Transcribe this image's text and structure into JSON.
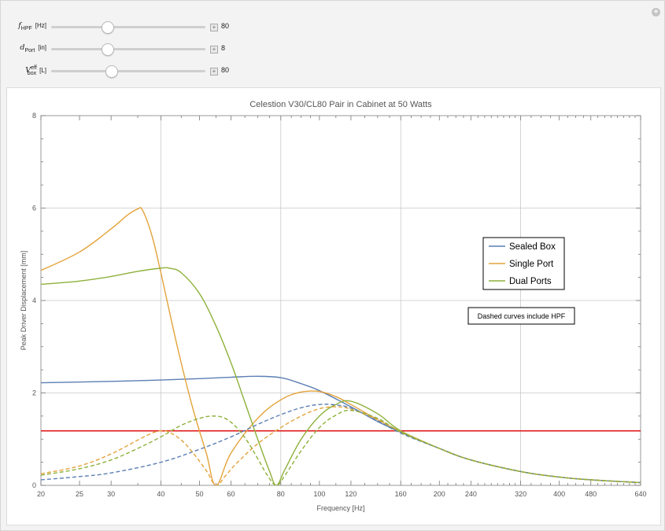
{
  "controls": [
    {
      "sym": "f",
      "sub": "HPF",
      "sup": "",
      "unit": "[Hz]",
      "value": "80",
      "fraction": 0.36
    },
    {
      "sym": "d",
      "sub": "Port",
      "sup": "",
      "unit": "[in]",
      "value": "8",
      "fraction": 0.36
    },
    {
      "sym": "V",
      "sub": "box",
      "sup": "eff",
      "unit": "[L]",
      "value": "80",
      "fraction": 0.39
    }
  ],
  "chart_data": {
    "type": "line",
    "title": "Celestion V30/CL80 Pair in Cabinet at 50 Watts",
    "xlabel": "Frequency [Hz]",
    "ylabel": "Peak Driver Displacement [mm]",
    "x_scale": "log",
    "xlim": [
      20,
      640
    ],
    "ylim": [
      0,
      8
    ],
    "x_ticks": [
      20,
      25,
      30,
      40,
      50,
      60,
      80,
      100,
      120,
      160,
      200,
      240,
      320,
      400,
      480,
      640
    ],
    "y_ticks": [
      0,
      2,
      4,
      6,
      8
    ],
    "x_gridlines": [
      40,
      80,
      160,
      320
    ],
    "y_gridlines": [
      2,
      4,
      6
    ],
    "limit_line": {
      "y": 1.18,
      "color": "#e0191b"
    },
    "legend_position": "right",
    "note": "Dashed curves include HPF",
    "series": [
      {
        "name": "Sealed Box",
        "color": "#5b7fb4",
        "style": "solid",
        "x": [
          20,
          30,
          40,
          50,
          60,
          70,
          80,
          90,
          100,
          120,
          140,
          160,
          200,
          240,
          320,
          400,
          480,
          640
        ],
        "y": [
          2.22,
          2.25,
          2.28,
          2.31,
          2.34,
          2.36,
          2.33,
          2.2,
          2.05,
          1.7,
          1.38,
          1.15,
          0.8,
          0.55,
          0.3,
          0.18,
          0.12,
          0.06
        ]
      },
      {
        "name": "Single Port",
        "color": "#e3a33a",
        "style": "solid",
        "x": [
          20,
          25,
          30,
          33,
          35,
          36,
          38,
          40,
          44,
          48,
          52,
          55,
          60,
          70,
          80,
          90,
          100,
          110,
          120,
          140,
          160,
          200,
          240,
          320,
          400,
          480,
          640
        ],
        "y": [
          4.65,
          5.05,
          5.55,
          5.85,
          5.98,
          5.95,
          5.4,
          4.6,
          3.0,
          1.7,
          0.7,
          0.0,
          0.7,
          1.45,
          1.85,
          2.02,
          2.03,
          1.92,
          1.75,
          1.42,
          1.17,
          0.8,
          0.55,
          0.3,
          0.18,
          0.12,
          0.06
        ]
      },
      {
        "name": "Dual Ports",
        "color": "#8eb13b",
        "style": "solid",
        "x": [
          20,
          25,
          30,
          35,
          40,
          42,
          45,
          50,
          55,
          60,
          65,
          70,
          75,
          78,
          82,
          90,
          100,
          110,
          120,
          140,
          160,
          200,
          240,
          320,
          400,
          480,
          640
        ],
        "y": [
          4.35,
          4.42,
          4.52,
          4.63,
          4.7,
          4.7,
          4.6,
          4.15,
          3.45,
          2.65,
          1.8,
          1.0,
          0.3,
          0.0,
          0.35,
          1.0,
          1.5,
          1.75,
          1.82,
          1.55,
          1.18,
          0.8,
          0.55,
          0.3,
          0.18,
          0.12,
          0.06
        ]
      },
      {
        "name": "Sealed Box",
        "color": "#5b7fb4",
        "style": "dashed",
        "x": [
          20,
          25,
          30,
          40,
          50,
          60,
          70,
          80,
          90,
          100,
          110,
          120,
          140,
          160,
          200,
          240,
          320,
          400,
          480,
          640
        ],
        "y": [
          0.12,
          0.19,
          0.27,
          0.5,
          0.78,
          1.05,
          1.32,
          1.53,
          1.68,
          1.75,
          1.74,
          1.67,
          1.4,
          1.13,
          0.8,
          0.55,
          0.3,
          0.18,
          0.12,
          0.06
        ]
      },
      {
        "name": "Single Port",
        "color": "#e3a33a",
        "style": "dashed",
        "x": [
          20,
          25,
          30,
          35,
          38,
          40,
          42,
          45,
          48,
          52,
          55,
          58,
          62,
          70,
          80,
          90,
          100,
          110,
          120,
          140,
          160,
          200,
          240,
          320,
          400,
          480,
          640
        ],
        "y": [
          0.25,
          0.42,
          0.68,
          0.98,
          1.13,
          1.18,
          1.15,
          0.98,
          0.72,
          0.32,
          0.0,
          0.2,
          0.48,
          0.9,
          1.25,
          1.5,
          1.66,
          1.7,
          1.65,
          1.42,
          1.16,
          0.8,
          0.55,
          0.3,
          0.18,
          0.12,
          0.06
        ]
      },
      {
        "name": "Dual Ports",
        "color": "#8eb13b",
        "style": "dashed",
        "x": [
          20,
          25,
          30,
          35,
          40,
          45,
          50,
          54,
          58,
          62,
          66,
          70,
          74,
          78,
          82,
          90,
          100,
          110,
          120,
          140,
          160,
          200,
          240,
          320,
          400,
          480,
          640
        ],
        "y": [
          0.22,
          0.36,
          0.55,
          0.8,
          1.05,
          1.3,
          1.45,
          1.5,
          1.45,
          1.25,
          0.95,
          0.58,
          0.22,
          0.0,
          0.22,
          0.75,
          1.25,
          1.52,
          1.62,
          1.45,
          1.15,
          0.8,
          0.55,
          0.3,
          0.18,
          0.12,
          0.06
        ]
      }
    ],
    "legend": [
      "Sealed Box",
      "Single Port",
      "Dual Ports"
    ]
  }
}
